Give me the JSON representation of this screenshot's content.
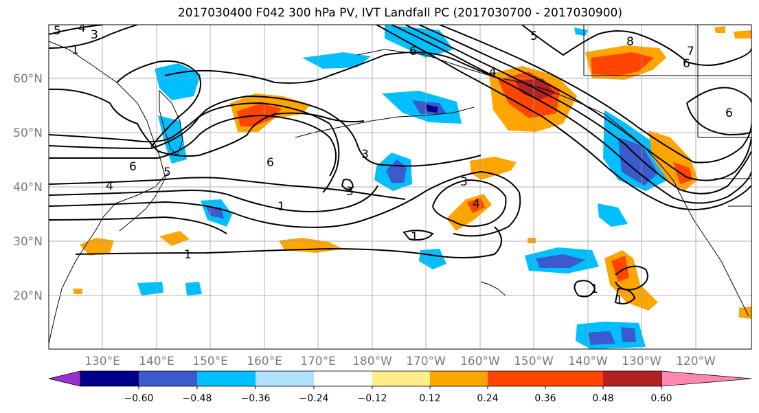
{
  "title": "2017030400 F042 300 hPa PV, IVT Landfall PC (2017030700 - 2017030900)",
  "lat_labels": [
    "60°N",
    "50°N",
    "40°N",
    "30°N",
    "20°N"
  ],
  "lon_labels": [
    "130°E",
    "140°E",
    "150°E",
    "160°E",
    "170°E",
    "180°W",
    "170°W",
    "160°W",
    "150°W",
    "140°W",
    "130°W",
    "120°W"
  ],
  "colorbar": {
    "ticks": [
      "−0.60",
      "−0.48",
      "−0.36",
      "−0.24",
      "−0.12",
      "0.12",
      "0.24",
      "0.36",
      "0.48",
      "0.60"
    ],
    "colors": [
      "#9932cc",
      "#00008b",
      "#3a5acd",
      "#00bfff",
      "#b0e2ff",
      "#ffffff",
      "#ffec8b",
      "#ffa500",
      "#ff4500",
      "#b22222",
      "#ff88b0"
    ]
  },
  "contour_labels": [
    "5",
    "4",
    "3",
    "1",
    "5",
    "4",
    "8",
    "7",
    "6",
    "6",
    "6",
    "5",
    "6",
    "3",
    "3",
    "3",
    "4",
    "1",
    "1",
    "1",
    "1",
    "1",
    "6",
    "4"
  ],
  "colors": {
    "contour": "#000000",
    "grid": "#9e9e9e",
    "coast": "#000000"
  }
}
